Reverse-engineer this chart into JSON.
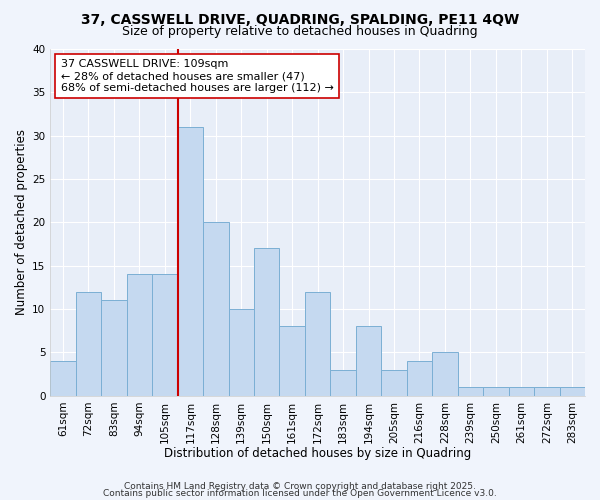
{
  "title": "37, CASSWELL DRIVE, QUADRING, SPALDING, PE11 4QW",
  "subtitle": "Size of property relative to detached houses in Quadring",
  "xlabel": "Distribution of detached houses by size in Quadring",
  "ylabel": "Number of detached properties",
  "footer1": "Contains HM Land Registry data © Crown copyright and database right 2025.",
  "footer2": "Contains public sector information licensed under the Open Government Licence v3.0.",
  "bin_labels": [
    "61sqm",
    "72sqm",
    "83sqm",
    "94sqm",
    "105sqm",
    "117sqm",
    "128sqm",
    "139sqm",
    "150sqm",
    "161sqm",
    "172sqm",
    "183sqm",
    "194sqm",
    "205sqm",
    "216sqm",
    "228sqm",
    "239sqm",
    "250sqm",
    "261sqm",
    "272sqm",
    "283sqm"
  ],
  "bar_heights": [
    4,
    12,
    11,
    14,
    14,
    31,
    20,
    10,
    17,
    8,
    12,
    3,
    8,
    3,
    4,
    5,
    1,
    1,
    1,
    1,
    1
  ],
  "bar_color": "#c5d9f0",
  "bar_edge_color": "#7bafd4",
  "vline_x": 4.5,
  "vline_color": "#cc0000",
  "annotation_line1": "37 CASSWELL DRIVE: 109sqm",
  "annotation_line2": "← 28% of detached houses are smaller (47)",
  "annotation_line3": "68% of semi-detached houses are larger (112) →",
  "annotation_box_color": "#ffffff",
  "annotation_box_edge": "#cc0000",
  "ylim": [
    0,
    40
  ],
  "yticks": [
    0,
    5,
    10,
    15,
    20,
    25,
    30,
    35,
    40
  ],
  "background_color": "#f0f4fc",
  "plot_bg_color": "#e8eef8",
  "grid_color": "#ffffff",
  "title_fontsize": 10,
  "subtitle_fontsize": 9,
  "axis_label_fontsize": 8.5,
  "tick_fontsize": 7.5,
  "annotation_fontsize": 8,
  "footer_fontsize": 6.5
}
